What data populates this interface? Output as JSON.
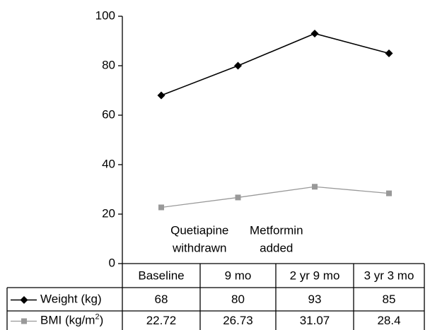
{
  "chart_data": {
    "type": "line",
    "categories": [
      "Baseline",
      "9 mo",
      "2 yr 9 mo",
      "3 yr 3 mo"
    ],
    "series": [
      {
        "name": "Weight (kg)",
        "values": [
          68,
          80,
          93,
          85
        ],
        "display": [
          "68",
          "80",
          "93",
          "85"
        ],
        "color": "#000000",
        "marker": "diamond"
      },
      {
        "name": "BMI (kg/m",
        "superscript": "2",
        "name_close": ")",
        "values": [
          22.72,
          26.73,
          31.07,
          28.4
        ],
        "display": [
          "22.72",
          "26.73",
          "31.07",
          "28.4"
        ],
        "color": "#999999",
        "marker": "square"
      }
    ],
    "yticks": [
      "0",
      "20",
      "40",
      "60",
      "80",
      "100"
    ],
    "ylim": [
      0,
      100
    ],
    "annotations": [
      {
        "lines": [
          "Quetiapine",
          "withdrawn"
        ],
        "between": [
          0,
          1
        ]
      },
      {
        "lines": [
          "Metformin",
          "added"
        ],
        "between": [
          1,
          2
        ]
      }
    ],
    "grid": false,
    "legend": "data-table"
  }
}
